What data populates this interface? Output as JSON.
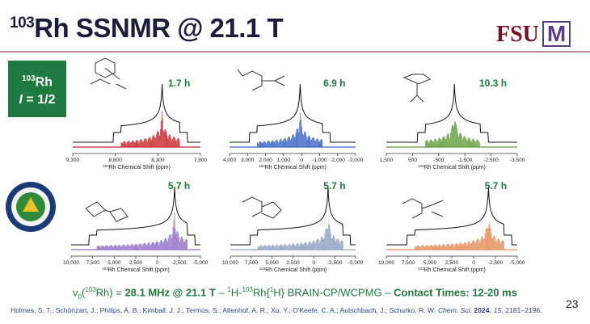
{
  "header": {
    "title_sup": "103",
    "title": "Rh SSNMR @ 21.1 T",
    "logo_text": "FSU",
    "logo_mark": "M"
  },
  "badge": {
    "sup": "103",
    "nucleus": "Rh",
    "spin_symbol": "I",
    "spin_value": " = 1/2"
  },
  "panels": [
    {
      "time": "1.7 h",
      "color": "#c8282d",
      "ticks": [
        "9,300",
        "8,800",
        "8,300",
        "7,800"
      ],
      "axis_sup": "103",
      "axis_label": "Rh Chemical Shift (ppm)"
    },
    {
      "time": "6.9 h",
      "color": "#3d66c4",
      "ticks": [
        "4,000",
        "3,000",
        "2,000",
        "1,000",
        "0",
        "-1,000",
        "-2,000",
        "-3,000"
      ],
      "axis_sup": "103",
      "axis_label": "Rh Chemical Shift (ppm)"
    },
    {
      "time": "10.3 h",
      "color": "#5e9c3a",
      "ticks": [
        "1,500",
        "500",
        "-500",
        "-1,500",
        "-2,500",
        "-3,500"
      ],
      "axis_sup": "103",
      "axis_label": "Rh Chemical Shift (ppm)"
    },
    {
      "time": "5.7 h",
      "color": "#9270c8",
      "ticks": [
        "10,000",
        "7,500",
        "5,000",
        "2,500",
        "0",
        "-2,500",
        "-5,000"
      ],
      "axis_sup": "103",
      "axis_label": "Rh Chemical Shift (ppm)"
    },
    {
      "time": "5.7 h",
      "color": "#8ea2c2",
      "ticks": [
        "10,000",
        "7,500",
        "5,000",
        "2,500",
        "0",
        "-2,500",
        "-5,000"
      ],
      "axis_sup": "103",
      "axis_label": "Rh Chemical Shift (ppm)"
    },
    {
      "time": "5.7 h",
      "color": "#e38b55",
      "ticks": [
        "10,000",
        "7,500",
        "5,000",
        "2,500",
        "0",
        "-2,500",
        "-5,000"
      ],
      "axis_sup": "103",
      "axis_label": "Rh Chemical Shift (ppm)"
    }
  ],
  "footer": {
    "nu": "ν",
    "nu_sub": "0",
    "open": "(",
    "sup1": "103",
    "rh": "Rh) = ",
    "conditions": "28.1 MHz @ 21.1 T",
    "dash": " – ",
    "h_sup": "1",
    "h_text": "H-",
    "rh_sup": "103",
    "rh_text": "Rh{",
    "h2_sup": "1",
    "method": "H} BRAIN-CP/WCPMG – ",
    "contact": "Contact Times: 12-20 ms"
  },
  "page_number": "23",
  "citation": {
    "authors": "Holmes, S. T.; Schönzart, J.; Philips, A. B.; Kimball, J. J.; Termos, S.; Altenhof, A. R.; Xu, Y.; O'Keefe, C. A.; Autschbach, J.; Schurko, R. W.",
    "journal": "Chem. Sci.",
    "year": "2024",
    "comma": ",",
    "volume": "15",
    "pages": ", 2181–2196."
  }
}
